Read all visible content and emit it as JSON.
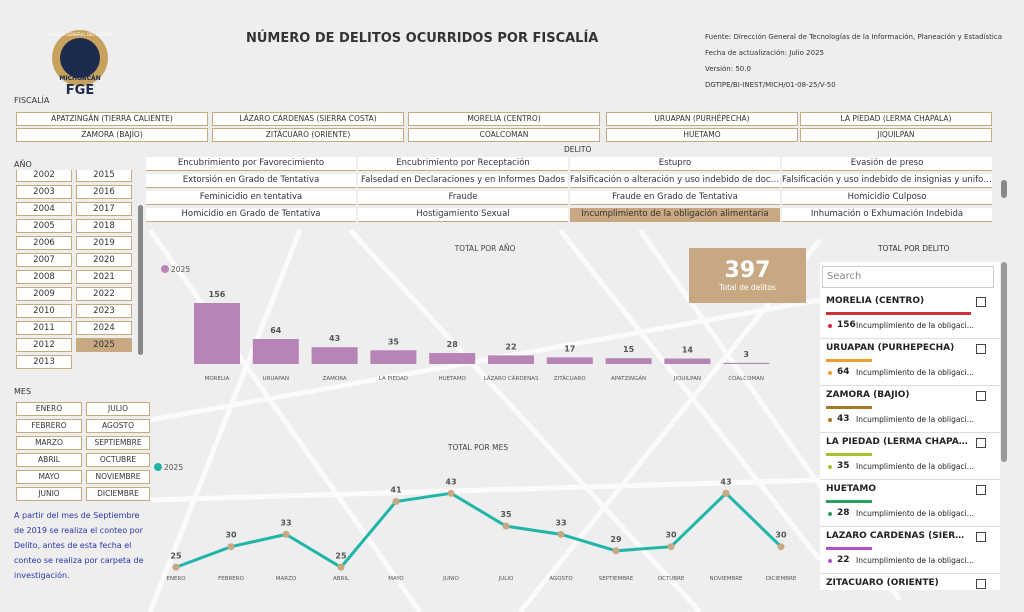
{
  "header": {
    "logo_ring": "FISCALÍA GENERAL DEL ESTADO",
    "logo_state": "MICHOACÁN",
    "logo_acronym": "FGE",
    "title": "NÚMERO DE DELITOS OCURRIDOS POR FISCALÍA",
    "source": [
      "Fuente: Dirección General de Tecnologías de la Información, Planeación y Estadística",
      "Fecha de actualización: Julio 2025",
      "Versión: 50.0",
      "DGTIPE/BI-INEST/MICH/01-08-25/V-50"
    ]
  },
  "fiscalia": {
    "label": "FISCALÍA",
    "options": [
      "APATZINGÁN (TIERRA CALIENTE)",
      "LÁZARO CÁRDENAS (SIERRA COSTA)",
      "MORELIA (CENTRO)",
      "URUAPAN (PURHÉPECHA)",
      "LA PIEDAD (LERMA CHAPALA)",
      "ZAMORA (BAJÍO)",
      "ZITÁCUARO (ORIENTE)",
      "COALCOMAN",
      "HUETAMO",
      "JIQUILPAN"
    ]
  },
  "delito": {
    "label": "DELITO",
    "selected": "Incumplimiento de la obligación alimentaria",
    "options": [
      "Encubrimiento por Favorecimiento",
      "Encubrimiento por Receptación",
      "Estupro",
      "Evasión de preso",
      "Extorsión en Grado de Tentativa",
      "Falsedad en Declaraciones y en Informes Dados",
      "Falsificación o alteración y uso indebido de documentos",
      "Falsificación y uso indebido de insignias y uniformes",
      "Feminicidio en tentativa",
      "Fraude",
      "Fraude en Grado de Tentativa",
      "Homicidio Culposo",
      "Homicidio en Grado de Tentativa",
      "Hostigamiento Sexual",
      "Incumplimiento de la obligación alimentaria",
      "Inhumación o Exhumación Indebida"
    ]
  },
  "anio": {
    "label": "AÑO",
    "selected": "2025",
    "options_left": [
      "2002",
      "2003",
      "2004",
      "2005",
      "2006",
      "2007",
      "2008",
      "2009",
      "2010",
      "2011",
      "2012",
      "2013"
    ],
    "options_right": [
      "2015",
      "2016",
      "2017",
      "2018",
      "2019",
      "2020",
      "2021",
      "2022",
      "2023",
      "2024",
      "2025"
    ]
  },
  "mes": {
    "label": "MES",
    "options": [
      "ENERO",
      "FEBRERO",
      "MARZO",
      "ABRIL",
      "MAYO",
      "JUNIO",
      "JULIO",
      "AGOSTO",
      "SEPTIEMBRE",
      "OCTUBRE",
      "NOVIEMBRE",
      "DICIEMBRE"
    ]
  },
  "note": "A partir del mes de Septiembre de 2019 se realiza el conteo por Delito, antes de esta fecha el conteo se realiza por carpeta de investigación.",
  "kpi": {
    "value": 397,
    "label": "Total de delitos"
  },
  "chart_data": [
    {
      "type": "bar",
      "title": "TOTAL POR AÑO",
      "categories": [
        "MORELIA",
        "URUAPAN",
        "ZAMORA",
        "LA PIEDAD",
        "HUETAMO",
        "LÁZARO CÁRDENAS",
        "ZITÁCUARO",
        "APATZINGÁN",
        "JIQUILPAN",
        "COALCOMAN"
      ],
      "series": [
        {
          "name": "2025",
          "color": "#b784b6",
          "values": [
            156,
            64,
            43,
            35,
            28,
            22,
            17,
            15,
            14,
            3
          ]
        }
      ]
    },
    {
      "type": "line",
      "title": "TOTAL POR MES",
      "categories": [
        "ENERO",
        "FEBRERO",
        "MARZO",
        "ABRIL",
        "MAYO",
        "JUNIO",
        "JULIO",
        "AGOSTO",
        "SEPTIEMBRE",
        "OCTUBRE",
        "NOVIEMBRE",
        "DICIEMBRE"
      ],
      "series": [
        {
          "name": "2025",
          "color": "#1fb5a8",
          "marker_color": "#c8a882",
          "values": [
            25,
            30,
            33,
            25,
            41,
            43,
            35,
            33,
            29,
            30,
            43,
            30
          ]
        }
      ]
    }
  ],
  "total_por_delito": {
    "title": "TOTAL POR DELITO",
    "search_placeholder": "Search",
    "items": [
      {
        "name": "MORELIA (CENTRO)",
        "color": "#d32f3a",
        "count": 156,
        "delito": "Incumplimiento de la obligación alimentaria"
      },
      {
        "name": "URUAPAN (PURHÉPECHA)",
        "color": "#f29b30",
        "count": 64,
        "delito": "Incumplimiento de la obligación alimentaria"
      },
      {
        "name": "ZAMORA (BAJÍO)",
        "color": "#a9782a",
        "count": 43,
        "delito": "Incumplimiento de la obligación alimentaria"
      },
      {
        "name": "LA PIEDAD (LERMA CHAPALA)",
        "color": "#a8c030",
        "count": 35,
        "delito": "Incumplimiento de la obligación alimentaria"
      },
      {
        "name": "HUETAMO",
        "color": "#2e9e5e",
        "count": 28,
        "delito": "Incumplimiento de la obligación alimentaria"
      },
      {
        "name": "LÁZARO CÁRDENAS (SIERRA COSTA)",
        "color": "#b24fd0",
        "count": 22,
        "delito": "Incumplimiento de la obligación alimentaria"
      },
      {
        "name": "ZITÁCUARO (ORIENTE)"
      }
    ]
  }
}
